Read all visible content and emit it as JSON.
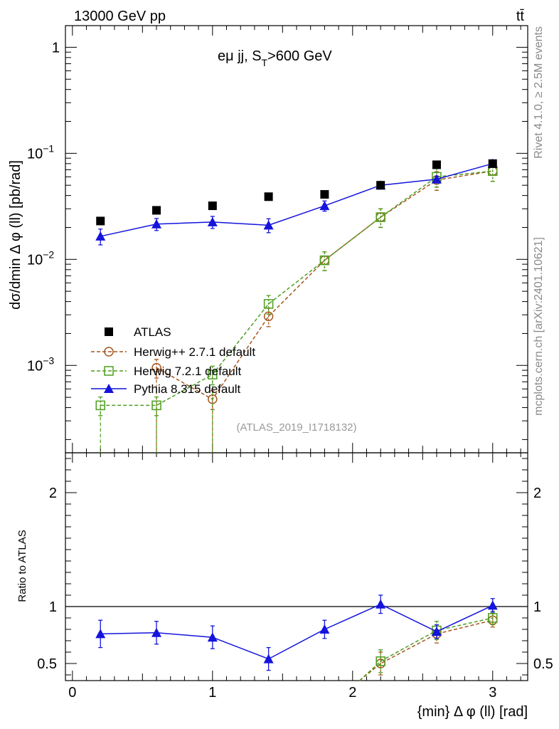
{
  "header": {
    "energy_label": "13000 GeV pp",
    "process_label": "tt̄"
  },
  "side_labels": {
    "rivet": "Rivet 4.1.0, ≥ 2.5M events",
    "mcplots": "mcplots.cern.ch [arXiv:2401.10621]"
  },
  "chart_data": {
    "type": "line",
    "title": "eμ jj, S_T>600 GeV",
    "title_main": "eμ jj, S",
    "title_sub": "T",
    "title_tail": ">600 GeV",
    "analysis_id": "(ATLAS_2019_I1718132)",
    "xlabel": "{min} Δ φ (ll) [rad]",
    "ylabel": "dσ/dmin Δ φ (ll) [pb/rad]",
    "ratio_ylabel": "Ratio to ATLAS",
    "xlim": [
      -0.05,
      3.25
    ],
    "ylim": [
      0.00015,
      1.6
    ],
    "ratio_ylim": [
      0.35,
      2.35
    ],
    "yscale": "log",
    "x_ticks": [
      "0",
      "1",
      "2",
      "3"
    ],
    "y_ticks": [
      "1",
      "10^-1",
      "10^-2",
      "10^-3"
    ],
    "ratio_ticks": [
      "2",
      "1",
      "0.5"
    ],
    "x": [
      0.2,
      0.6,
      1.0,
      1.4,
      1.8,
      2.2,
      2.6,
      3.0
    ],
    "series": [
      {
        "name": "ATLAS",
        "color": "#000000",
        "marker": "filled-square",
        "values": [
          0.023,
          0.029,
          0.032,
          0.039,
          0.041,
          0.05,
          0.078,
          0.08
        ],
        "ratio": [
          1,
          1,
          1,
          1,
          1,
          1,
          1,
          1
        ]
      },
      {
        "name": "Herwig++ 2.7.1 default",
        "color": "#a5571e",
        "marker": "open-circle",
        "dashed": true,
        "values": [
          null,
          0.00095,
          0.00048,
          0.0029,
          0.0098,
          0.025,
          0.056,
          0.068
        ],
        "ratio": [
          null,
          null,
          null,
          null,
          null,
          0.5,
          0.76,
          0.88
        ],
        "ratio_err": [
          null,
          null,
          null,
          null,
          null,
          0.1,
          0.08,
          0.06
        ]
      },
      {
        "name": "Herwig 7.2.1 default",
        "color": "#4d9e1f",
        "marker": "open-square",
        "dashed": true,
        "values": [
          0.00042,
          0.00042,
          0.00082,
          0.0038,
          0.0098,
          0.025,
          0.06,
          0.068
        ],
        "ratio": [
          null,
          null,
          null,
          null,
          null,
          0.52,
          0.79,
          0.9
        ],
        "ratio_err": [
          null,
          null,
          null,
          null,
          null,
          0.1,
          0.08,
          0.06
        ]
      },
      {
        "name": "Pythia 8.315 default",
        "color": "#1414dc",
        "marker": "filled-triangle",
        "values": [
          0.0165,
          0.0215,
          0.0225,
          0.021,
          0.032,
          0.05,
          0.057,
          0.08
        ],
        "err_frac": [
          0.17,
          0.13,
          0.13,
          0.15,
          0.11,
          0.08,
          0.06,
          0.06
        ],
        "ratio": [
          0.76,
          0.77,
          0.73,
          0.54,
          0.8,
          1.02,
          0.78,
          1.01
        ],
        "ratio_err": [
          0.12,
          0.1,
          0.1,
          0.1,
          0.08,
          0.08,
          0.06,
          0.06
        ]
      }
    ]
  }
}
